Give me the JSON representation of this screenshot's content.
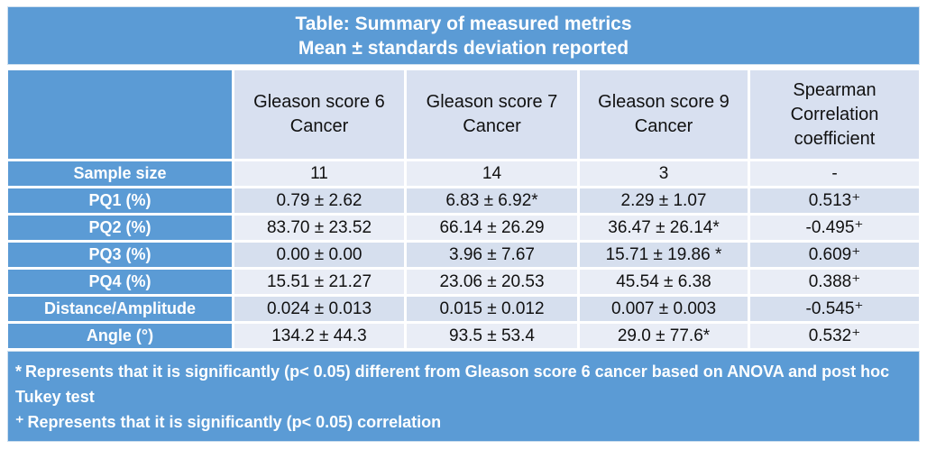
{
  "title": {
    "line1": "Table: Summary of measured metrics",
    "line2": "Mean ± standards deviation reported"
  },
  "table": {
    "columns": [
      "Gleason score 6 Cancer",
      "Gleason score 7 Cancer",
      "Gleason score 9 Cancer",
      "Spearman Correlation coefficient"
    ],
    "rows": [
      {
        "label": "Sample size",
        "values": [
          "11",
          "14",
          "3",
          "-"
        ]
      },
      {
        "label": "PQ1 (%)",
        "values": [
          "0.79 ± 2.62",
          "6.83 ± 6.92*",
          "2.29 ± 1.07",
          "0.513⁺"
        ]
      },
      {
        "label": "PQ2 (%)",
        "values": [
          "83.70 ± 23.52",
          "66.14 ± 26.29",
          "36.47 ± 26.14*",
          "-0.495⁺"
        ]
      },
      {
        "label": "PQ3 (%)",
        "values": [
          "0.00 ± 0.00",
          "3.96 ± 7.67",
          "15.71 ± 19.86 *",
          "0.609⁺"
        ]
      },
      {
        "label": "PQ4 (%)",
        "values": [
          "15.51 ± 21.27",
          "23.06 ± 20.53",
          "45.54 ± 6.38",
          "0.388⁺"
        ]
      },
      {
        "label": "Distance/Amplitude",
        "values": [
          "0.024 ± 0.013",
          "0.015 ± 0.012",
          "0.007 ± 0.003",
          "-0.545⁺"
        ]
      },
      {
        "label": "Angle (°)",
        "values": [
          "134.2 ± 44.3",
          "93.5 ± 53.4",
          "29.0 ± 77.6*",
          "0.532⁺"
        ]
      }
    ]
  },
  "footnotes": [
    {
      "marker": "*",
      "text": "Represents that it is significantly (p< 0.05) different from Gleason score 6 cancer based on ANOVA and post hoc Tukey test"
    },
    {
      "marker": "⁺",
      "text": "Represents that it is significantly (p< 0.05) correlation"
    }
  ],
  "colors": {
    "theme_blue": "#5B9BD5",
    "band_light": "#E9EDF6",
    "band_dark": "#D6DFEE",
    "header_cell": "#D8E0F0",
    "text_dark": "#111111",
    "text_light": "#FFFFFF"
  }
}
